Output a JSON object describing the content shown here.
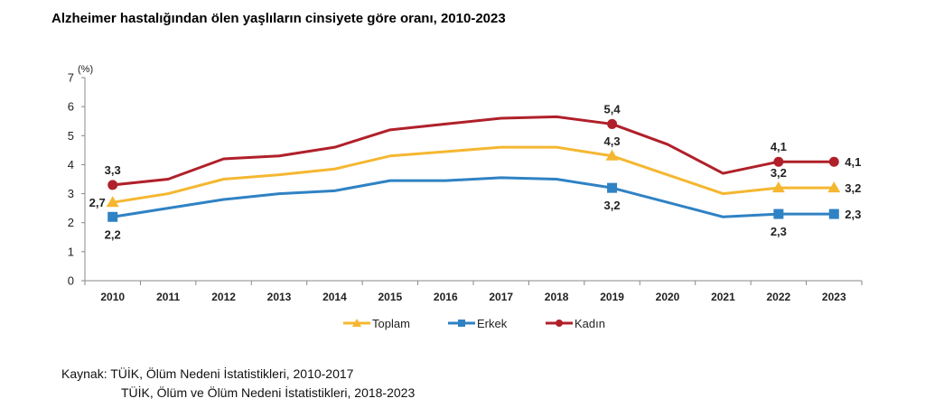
{
  "chart_data": {
    "type": "line",
    "title": "Alzheimer hastalığından ölen yaşlıların cinsiyete göre oranı, 2010-2023",
    "xlabel": "",
    "ylabel": "(%)",
    "ylim": [
      0,
      7
    ],
    "yticks": [
      "0",
      "1",
      "2",
      "3",
      "4",
      "5",
      "6",
      "7"
    ],
    "grid": false,
    "legend_position": "bottom",
    "categories": [
      "2010",
      "2011",
      "2012",
      "2013",
      "2014",
      "2015",
      "2016",
      "2017",
      "2018",
      "2019",
      "2020",
      "2021",
      "2022",
      "2023"
    ],
    "series": [
      {
        "name": "Toplam",
        "color": "#F5B731",
        "marker": "triangle",
        "values": [
          2.7,
          3.0,
          3.5,
          3.65,
          3.85,
          4.3,
          4.45,
          4.6,
          4.6,
          4.3,
          3.65,
          3.0,
          3.2,
          3.2
        ],
        "labels": [
          {
            "index": 0,
            "text": "2,7",
            "pos": "left"
          },
          {
            "index": 9,
            "text": "4,3",
            "pos": "above"
          },
          {
            "index": 12,
            "text": "3,2",
            "pos": "above"
          },
          {
            "index": 13,
            "text": "3,2",
            "pos": "right"
          }
        ]
      },
      {
        "name": "Erkek",
        "color": "#2F82C4",
        "marker": "square",
        "values": [
          2.2,
          2.5,
          2.8,
          3.0,
          3.1,
          3.45,
          3.45,
          3.55,
          3.5,
          3.2,
          2.7,
          2.2,
          2.3,
          2.3
        ],
        "labels": [
          {
            "index": 0,
            "text": "2,2",
            "pos": "below"
          },
          {
            "index": 9,
            "text": "3,2",
            "pos": "below"
          },
          {
            "index": 12,
            "text": "2,3",
            "pos": "below"
          },
          {
            "index": 13,
            "text": "2,3",
            "pos": "right"
          }
        ]
      },
      {
        "name": "Kadın",
        "color": "#B0202A",
        "marker": "circle",
        "values": [
          3.3,
          3.5,
          4.2,
          4.3,
          4.6,
          5.2,
          5.4,
          5.6,
          5.65,
          5.4,
          4.7,
          3.7,
          4.1,
          4.1
        ],
        "labels": [
          {
            "index": 0,
            "text": "3,3",
            "pos": "above"
          },
          {
            "index": 9,
            "text": "5,4",
            "pos": "above"
          },
          {
            "index": 12,
            "text": "4,1",
            "pos": "above"
          },
          {
            "index": 13,
            "text": "4,1",
            "pos": "right"
          }
        ]
      }
    ],
    "marker_indices": [
      0,
      9,
      12,
      13
    ]
  },
  "source": {
    "line1": "Kaynak: TÜİK, Ölüm Nedeni İstatistikleri, 2010-2017",
    "line2": "TÜİK, Ölüm ve Ölüm Nedeni İstatistikleri, 2018-2023"
  }
}
